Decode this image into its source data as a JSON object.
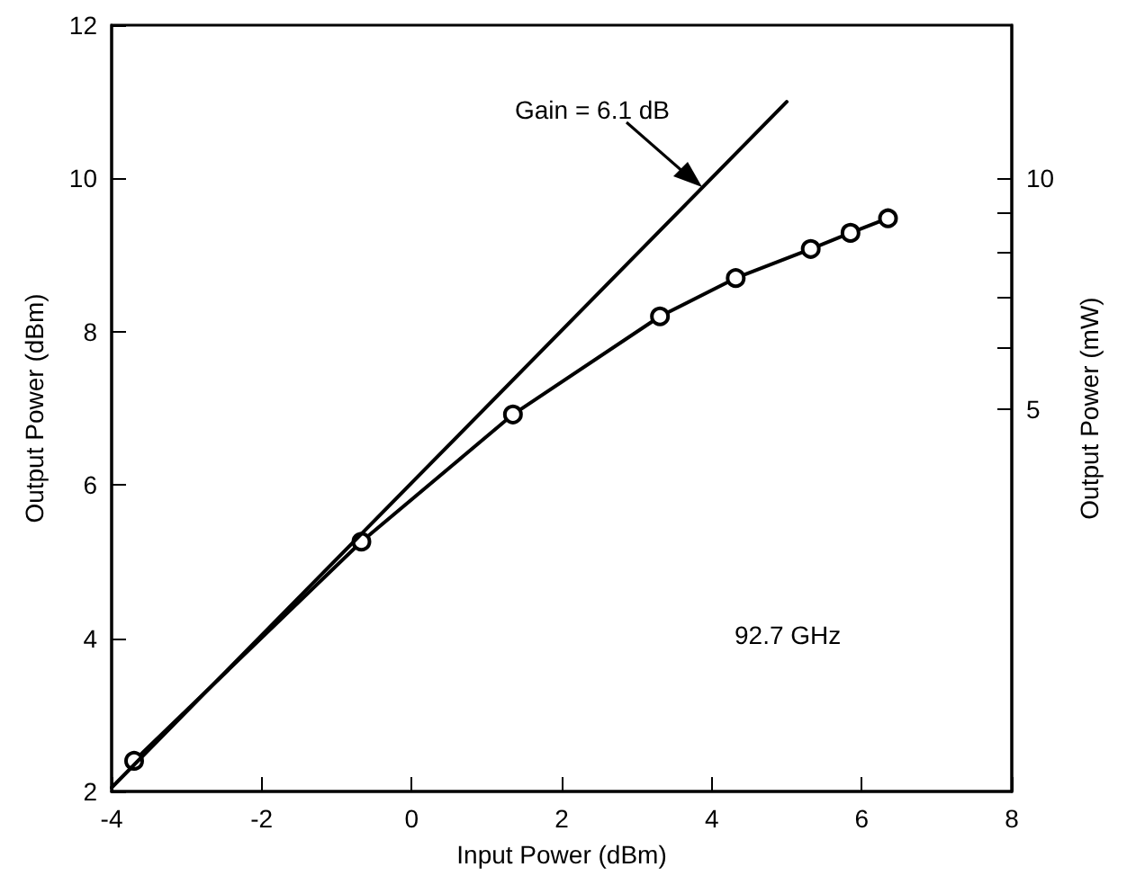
{
  "chart_data": {
    "type": "line",
    "xlabel": "Input Power (dBm)",
    "ylabel": "Output Power (dBm)",
    "y2label": "Output Power (mW)",
    "xlim": [
      -4,
      8
    ],
    "xticks": [
      -4,
      -2,
      0,
      2,
      4,
      6,
      8
    ],
    "ylim": [
      2,
      12
    ],
    "yticks": [
      2,
      4,
      6,
      8,
      10,
      12
    ],
    "y2lim": [
      1.585,
      15.85
    ],
    "y2ticks": [
      5,
      {
        "value": 6,
        "label": null
      },
      {
        "value": 7,
        "label": null
      },
      {
        "value": 8,
        "label": null
      },
      {
        "value": 9,
        "label": null
      },
      10
    ],
    "log": "y2",
    "grid": false,
    "series": [
      {
        "color": "#000000",
        "marker": "circle",
        "x": [
          -3.7,
          -0.67,
          1.35,
          3.31,
          4.32,
          5.32,
          5.85,
          6.35
        ],
        "values": [
          2.4,
          5.26,
          6.92,
          8.2,
          8.7,
          9.08,
          9.29,
          9.48
        ]
      },
      {
        "color": "#000000",
        "marker": "none",
        "x": [
          -4,
          5
        ],
        "values": [
          2.05,
          11.0
        ]
      }
    ],
    "annotations": [
      "Gain = 6.1 dB",
      "92.7 GHz"
    ]
  }
}
